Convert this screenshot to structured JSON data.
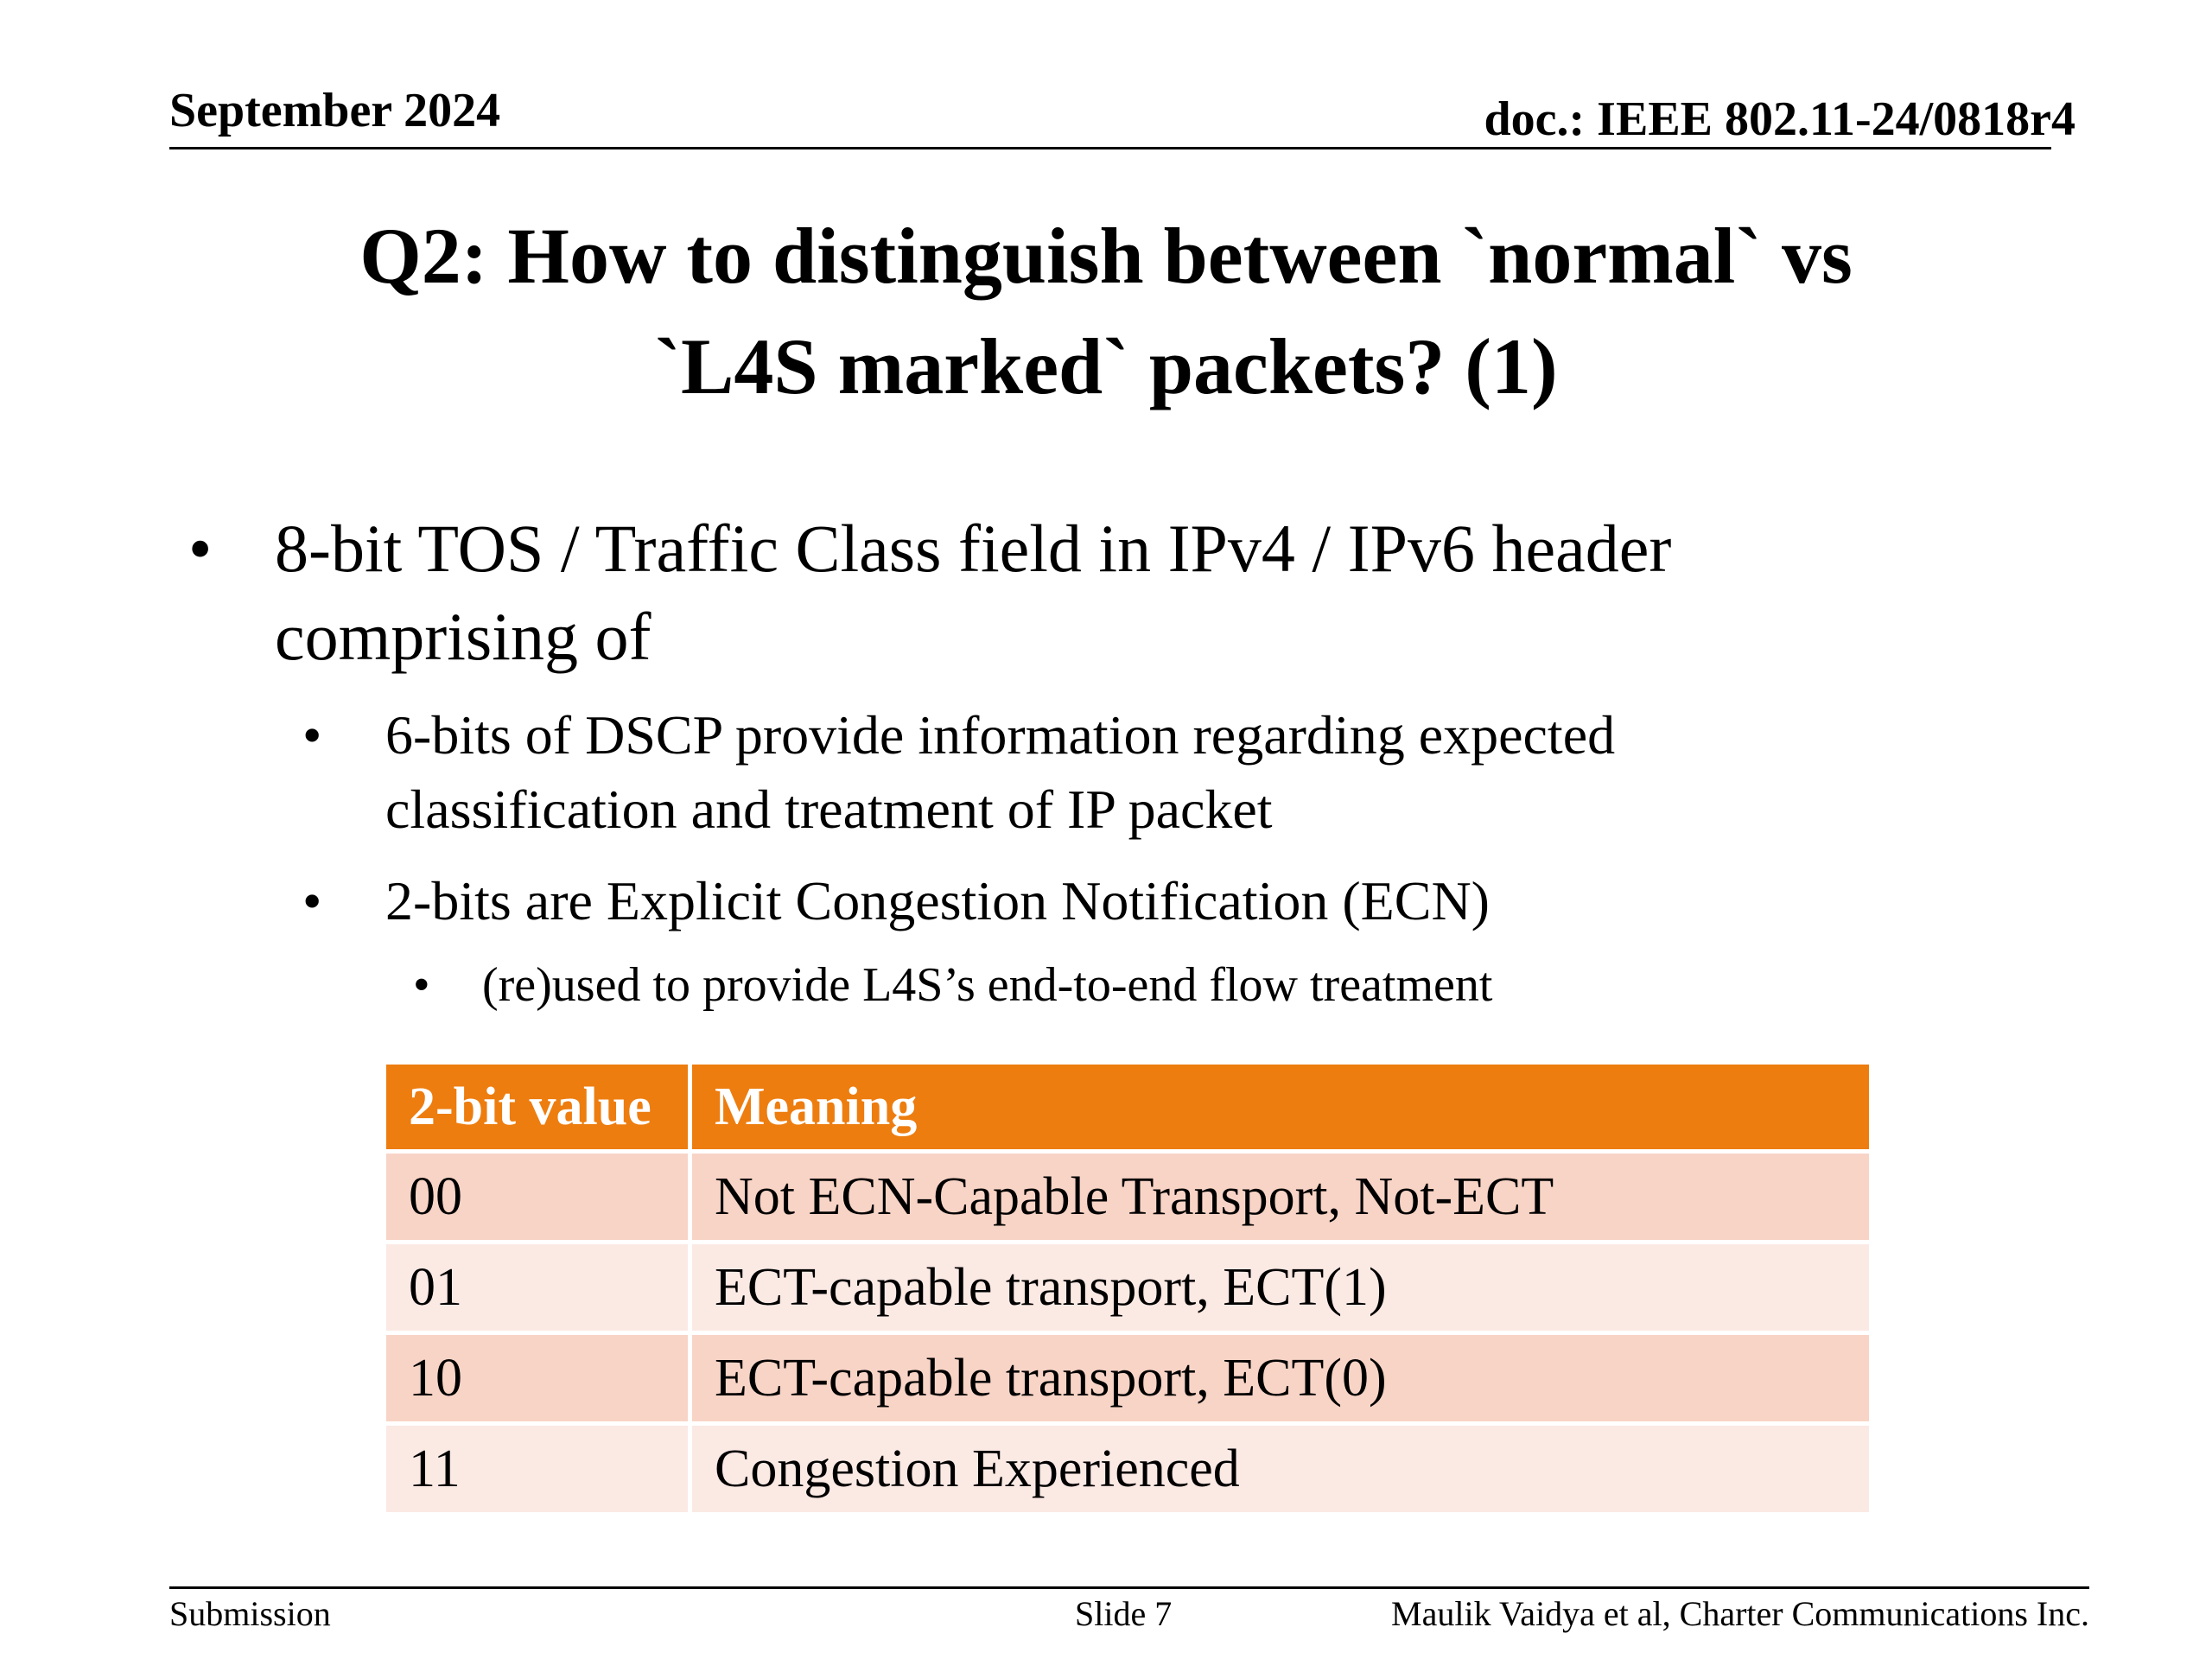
{
  "header": {
    "date": "September 2024",
    "doc_id": "doc.: IEEE 802.11-24/0818r4"
  },
  "title": {
    "line1": "Q2: How to distinguish between  `normal` vs",
    "line2": "`L4S marked` packets? (1)"
  },
  "bullets": [
    {
      "line1": "8-bit TOS / Traffic Class field in IPv4 / IPv6 header",
      "line2": "comprising of",
      "children": [
        {
          "line1": "6-bits of DSCP provide information regarding expected",
          "line2": "classification and treatment of IP packet"
        },
        {
          "line1": "2-bits are Explicit Congestion Notification (ECN)",
          "children": [
            {
              "line1": "(re)used to provide L4S’s end-to-end flow treatment"
            }
          ]
        }
      ]
    }
  ],
  "bullet_glyph": "•",
  "table": {
    "headers": [
      "2-bit value",
      "Meaning"
    ],
    "rows": [
      [
        "00",
        "Not ECN-Capable Transport, Not-ECT"
      ],
      [
        "01",
        "ECT-capable transport, ECT(1)"
      ],
      [
        "10",
        "ECT-capable transport, ECT(0)"
      ],
      [
        "11",
        "Congestion Experienced"
      ]
    ],
    "header_color": "#ed7d0f",
    "row_color_odd": "#f8d4c6",
    "row_color_even": "#fbe9e4"
  },
  "footer": {
    "left": "Submission",
    "center": "Slide 7",
    "right": "Maulik Vaidya et al, Charter Communications Inc."
  }
}
